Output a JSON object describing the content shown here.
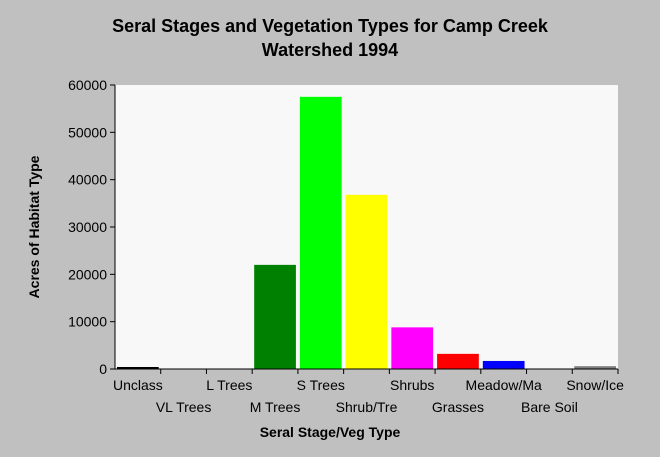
{
  "chart_data": {
    "type": "bar",
    "title_line1": "Seral Stages and Vegetation Types for Camp Creek",
    "title_line2": "Watershed 1994",
    "xlabel": "Seral Stage/Veg Type",
    "ylabel": "Acres of Habitat Type",
    "categories": [
      "Unclass",
      "VL Trees",
      "L Trees",
      "M Trees",
      "S Trees",
      "Shrub/Tre",
      "Shrubs",
      "Grasses",
      "Meadow/Ma",
      "Bare Soil",
      "Snow/Ice"
    ],
    "values": [
      400,
      0,
      0,
      22000,
      57500,
      36800,
      8800,
      3200,
      1700,
      0,
      600
    ],
    "colors": [
      "#000000",
      "#000000",
      "#000000",
      "#008000",
      "#00ff00",
      "#ffff00",
      "#ff00ff",
      "#ff0000",
      "#0000ff",
      "#808080",
      "#808080"
    ],
    "ylim": [
      0,
      60000
    ],
    "yticks": [
      "0",
      "10000",
      "20000",
      "30000",
      "40000",
      "50000",
      "60000"
    ],
    "grid": false,
    "plot_background": "#f8f8f8",
    "page_background": "#c0c0c0"
  }
}
